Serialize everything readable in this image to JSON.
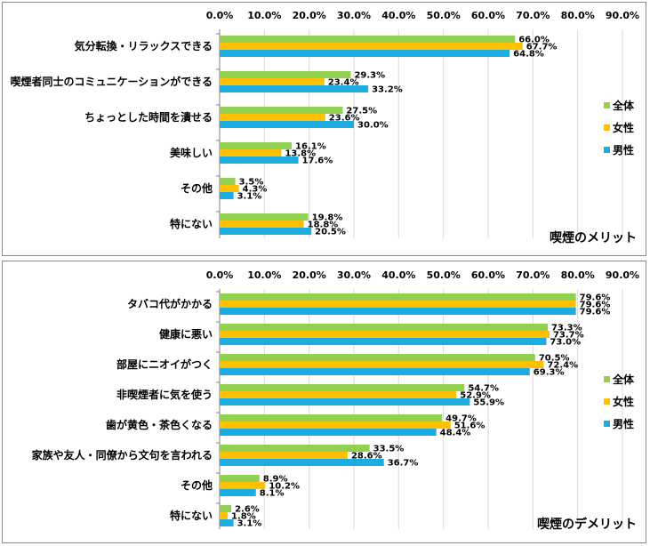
{
  "colors": {
    "all": "#92d050",
    "female": "#ffc000",
    "male": "#1cace2",
    "grid": "#d9d9d9",
    "axis": "#808080"
  },
  "legend": [
    "全体",
    "女性",
    "男性"
  ],
  "chart_data": [
    {
      "type": "bar",
      "orientation": "horizontal",
      "caption": "喫煙のメリット",
      "xlim": [
        0,
        90
      ],
      "ticks": [
        "0.0%",
        "10.0%",
        "20.0%",
        "30.0%",
        "40.0%",
        "50.0%",
        "60.0%",
        "70.0%",
        "80.0%",
        "90.0%"
      ],
      "categories": [
        "気分転換・リラックスできる",
        "喫煙者同士のコミュニケーションができる",
        "ちょっとした時間を潰せる",
        "美味しい",
        "その他",
        "特にない"
      ],
      "series": [
        {
          "name": "全体",
          "values": [
            66.0,
            29.3,
            27.5,
            16.1,
            3.5,
            19.8
          ],
          "labels": [
            "66.0%",
            "29.3%",
            "27.5%",
            "16.1%",
            "3.5%",
            "19.8%"
          ]
        },
        {
          "name": "女性",
          "values": [
            67.7,
            23.4,
            23.6,
            13.8,
            4.3,
            18.8
          ],
          "labels": [
            "67.7%",
            "23.4%",
            "23.6%",
            "13.8%",
            "4.3%",
            "18.8%"
          ]
        },
        {
          "name": "男性",
          "values": [
            64.8,
            33.2,
            30.0,
            17.6,
            3.1,
            20.5
          ],
          "labels": [
            "64.8%",
            "33.2%",
            "30.0%",
            "17.6%",
            "3.1%",
            "20.5%"
          ]
        }
      ]
    },
    {
      "type": "bar",
      "orientation": "horizontal",
      "caption": "喫煙のデメリット",
      "xlim": [
        0,
        90
      ],
      "ticks": [
        "0.0%",
        "10.0%",
        "20.0%",
        "30.0%",
        "40.0%",
        "50.0%",
        "60.0%",
        "70.0%",
        "80.0%",
        "90.0%"
      ],
      "categories": [
        "タバコ代がかかる",
        "健康に悪い",
        "部屋にニオイがつく",
        "非喫煙者に気を使う",
        "歯が黄色・茶色くなる",
        "家族や友人・同僚から文句を言われる",
        "その他",
        "特にない"
      ],
      "series": [
        {
          "name": "全体",
          "values": [
            79.6,
            73.3,
            70.5,
            54.7,
            49.7,
            33.5,
            8.9,
            2.6
          ],
          "labels": [
            "79.6%",
            "73.3%",
            "70.5%",
            "54.7%",
            "49.7%",
            "33.5%",
            "8.9%",
            "2.6%"
          ]
        },
        {
          "name": "女性",
          "values": [
            79.6,
            73.7,
            72.4,
            52.9,
            51.6,
            28.6,
            10.2,
            1.8
          ],
          "labels": [
            "79.6%",
            "73.7%",
            "72.4%",
            "52.9%",
            "51.6%",
            "28.6%",
            "10.2%",
            "1.8%"
          ]
        },
        {
          "name": "男性",
          "values": [
            79.6,
            73.0,
            69.3,
            55.9,
            48.4,
            36.7,
            8.1,
            3.1
          ],
          "labels": [
            "79.6%",
            "73.0%",
            "69.3%",
            "55.9%",
            "48.4%",
            "36.7%",
            "8.1%",
            "3.1%"
          ]
        }
      ]
    }
  ]
}
